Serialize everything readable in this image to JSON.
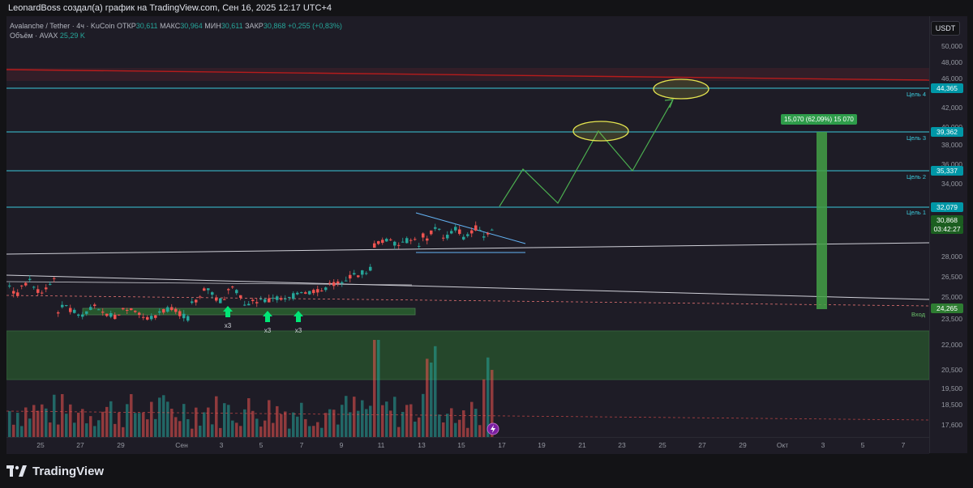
{
  "header": {
    "title": "LeonardBoss создал(а) график на TradingView.com, Сен 16, 2025 12:17 UTC+4"
  },
  "legend": {
    "symbol": "Avalanche / Tether · 4ч · KuCoin",
    "open_label": "ОТКР",
    "open": "30,611",
    "high_label": "МАКС",
    "high": "30,964",
    "low_label": "МИН",
    "low": "30,611",
    "close_label": "ЗАКР",
    "close": "30,868",
    "change": "+0,255 (+0,83%)",
    "volume_label": "Объём · AVAX",
    "volume": "25,29 K"
  },
  "currency": "USDT",
  "price_axis": {
    "ticks": [
      "50,000",
      "48,000",
      "46,000",
      "42,000",
      "40,000",
      "38,000",
      "36,000",
      "34,000",
      "28,000",
      "26,500",
      "25,000",
      "23,500",
      "22,000",
      "20,500",
      "19,500",
      "18,500",
      "17,600"
    ]
  },
  "price_tags": {
    "target4": "44,365",
    "target3": "39,362",
    "target2": "35,337",
    "target1": "32,079",
    "last_price": "30,868",
    "countdown": "03:42:27",
    "entry": "24,265"
  },
  "goal_labels": {
    "g4": "Цель 4",
    "g3": "Цель 3",
    "g2": "Цель 2",
    "g1": "Цель 1",
    "entry": "Вход"
  },
  "measure_label": "15,070 (62,09%) 15 070",
  "markers": [
    "x3",
    "x3",
    "x3"
  ],
  "time_axis": {
    "ticks": [
      "25",
      "27",
      "29",
      "Сен",
      "3",
      "5",
      "7",
      "9",
      "11",
      "13",
      "15",
      "17",
      "19",
      "21",
      "23",
      "25",
      "27",
      "29",
      "Окт",
      "3",
      "5",
      "7"
    ]
  },
  "footer": {
    "brand": "TradingView"
  },
  "colors": {
    "up": "#26a69a",
    "down": "#ef5350",
    "target_line": "#3bc9db",
    "resistance": "#b71c1c",
    "zone": "#2e7d32",
    "path": "#4caf50"
  }
}
